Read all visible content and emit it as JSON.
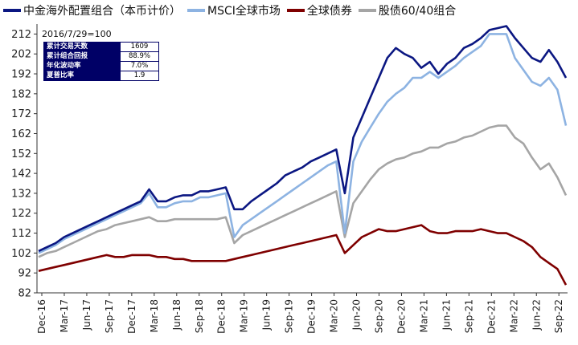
{
  "chart_data": {
    "type": "line",
    "subtitle": "2016/7/29=100",
    "xlabel": "",
    "ylabel": "",
    "ylim": [
      82,
      217
    ],
    "y_ticks": [
      82,
      92,
      102,
      112,
      122,
      132,
      142,
      152,
      162,
      172,
      182,
      192,
      202,
      212
    ],
    "x_ticks": [
      "Dec-16",
      "Mar-17",
      "Jun-17",
      "Sep-17",
      "Dec-17",
      "Mar-18",
      "Jun-18",
      "Sep-18",
      "Dec-18",
      "Mar-19",
      "Jun-19",
      "Sep-19",
      "Dec-19",
      "Mar-20",
      "Jun-20",
      "Sep-20",
      "Dec-20",
      "Mar-21",
      "Jun-21",
      "Sep-21",
      "Dec-21",
      "Mar-22",
      "Jun-22",
      "Sep-22"
    ],
    "legend_position": "top",
    "grid": false,
    "series": [
      {
        "name": "中金海外配置组合（本币计价）",
        "color": "#0B1782",
        "values": [
          103,
          105,
          107,
          110,
          112,
          114,
          116,
          118,
          120,
          122,
          124,
          126,
          128,
          134,
          128,
          128,
          130,
          131,
          131,
          133,
          133,
          134,
          135,
          124,
          124,
          128,
          131,
          134,
          137,
          141,
          143,
          145,
          148,
          150,
          152,
          154,
          132,
          160,
          170,
          180,
          190,
          200,
          205,
          202,
          200,
          195,
          198,
          192,
          197,
          200,
          205,
          207,
          210,
          214,
          215,
          216,
          210,
          205,
          200,
          198,
          204,
          198,
          190
        ]
      },
      {
        "name": "MSCI全球市场",
        "color": "#8DB3E2",
        "values": [
          102,
          104,
          106,
          109,
          111,
          113,
          115,
          117,
          119,
          121,
          123,
          125,
          127,
          132,
          125,
          125,
          127,
          128,
          128,
          130,
          130,
          131,
          132,
          110,
          116,
          119,
          122,
          125,
          128,
          131,
          134,
          137,
          140,
          143,
          146,
          148,
          112,
          148,
          158,
          165,
          172,
          178,
          182,
          185,
          190,
          190,
          193,
          190,
          193,
          196,
          200,
          203,
          206,
          212,
          212,
          212,
          200,
          194,
          188,
          186,
          190,
          184,
          166
        ]
      },
      {
        "name": "全球债券",
        "color": "#7F0000",
        "values": [
          93,
          94,
          95,
          96,
          97,
          98,
          99,
          100,
          101,
          100,
          100,
          101,
          101,
          101,
          100,
          100,
          99,
          99,
          98,
          98,
          98,
          98,
          98,
          99,
          100,
          101,
          102,
          103,
          104,
          105,
          106,
          107,
          108,
          109,
          110,
          111,
          102,
          106,
          110,
          112,
          114,
          113,
          113,
          114,
          115,
          116,
          113,
          112,
          112,
          113,
          113,
          113,
          114,
          113,
          112,
          112,
          110,
          108,
          105,
          100,
          97,
          94,
          86
        ]
      },
      {
        "name": "股债60/40组合",
        "color": "#A5A5A5",
        "values": [
          100,
          102,
          103,
          105,
          107,
          109,
          111,
          113,
          114,
          116,
          117,
          118,
          119,
          120,
          118,
          118,
          119,
          119,
          119,
          119,
          119,
          119,
          120,
          107,
          111,
          113,
          115,
          117,
          119,
          121,
          123,
          125,
          127,
          129,
          131,
          133,
          110,
          127,
          133,
          139,
          144,
          147,
          149,
          150,
          152,
          153,
          155,
          155,
          157,
          158,
          160,
          161,
          163,
          165,
          166,
          166,
          160,
          157,
          150,
          144,
          147,
          140,
          131
        ]
      }
    ]
  }
}
